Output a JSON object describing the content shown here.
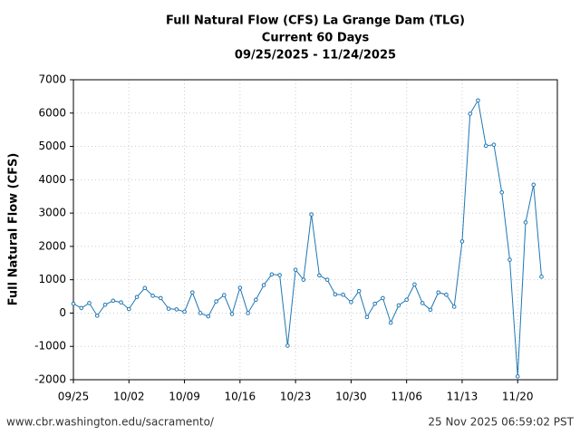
{
  "chart_data": {
    "type": "line",
    "title": [
      "Full Natural Flow (CFS) La Grange Dam (TLG)",
      "Current 60 Days",
      "09/25/2025 - 11/24/2025"
    ],
    "ylabel": "Full Natural Flow (CFS)",
    "x": [
      "2025-09-25",
      "2025-09-26",
      "2025-09-27",
      "2025-09-28",
      "2025-09-29",
      "2025-09-30",
      "2025-10-01",
      "2025-10-02",
      "2025-10-03",
      "2025-10-04",
      "2025-10-05",
      "2025-10-06",
      "2025-10-07",
      "2025-10-08",
      "2025-10-09",
      "2025-10-10",
      "2025-10-11",
      "2025-10-12",
      "2025-10-13",
      "2025-10-14",
      "2025-10-15",
      "2025-10-16",
      "2025-10-17",
      "2025-10-18",
      "2025-10-19",
      "2025-10-20",
      "2025-10-21",
      "2025-10-22",
      "2025-10-23",
      "2025-10-24",
      "2025-10-25",
      "2025-10-26",
      "2025-10-27",
      "2025-10-28",
      "2025-10-29",
      "2025-10-30",
      "2025-10-31",
      "2025-11-01",
      "2025-11-02",
      "2025-11-03",
      "2025-11-04",
      "2025-11-05",
      "2025-11-06",
      "2025-11-07",
      "2025-11-08",
      "2025-11-09",
      "2025-11-10",
      "2025-11-11",
      "2025-11-12",
      "2025-11-13",
      "2025-11-14",
      "2025-11-15",
      "2025-11-16",
      "2025-11-17",
      "2025-11-18",
      "2025-11-19",
      "2025-11-20",
      "2025-11-21",
      "2025-11-22",
      "2025-11-23"
    ],
    "values": [
      280,
      150,
      300,
      -80,
      250,
      370,
      320,
      120,
      480,
      750,
      520,
      450,
      130,
      110,
      40,
      620,
      0,
      -100,
      350,
      540,
      -30,
      760,
      0,
      400,
      840,
      1160,
      1140,
      -980,
      1300,
      1000,
      2960,
      1130,
      1000,
      560,
      550,
      330,
      660,
      -120,
      280,
      450,
      -290,
      230,
      400,
      860,
      300,
      100,
      620,
      550,
      190,
      2150,
      5980,
      6380,
      5020,
      5050,
      3620,
      1600,
      -1900,
      2720,
      3850,
      1090
    ],
    "color": "#1f77b4",
    "xlim": [
      "2025-09-25",
      "2025-11-25"
    ],
    "xticks": [
      {
        "value": "2025-09-25",
        "label": "09/25"
      },
      {
        "value": "2025-10-02",
        "label": "10/02"
      },
      {
        "value": "2025-10-09",
        "label": "10/09"
      },
      {
        "value": "2025-10-16",
        "label": "10/16"
      },
      {
        "value": "2025-10-23",
        "label": "10/23"
      },
      {
        "value": "2025-10-30",
        "label": "10/30"
      },
      {
        "value": "2025-11-06",
        "label": "11/06"
      },
      {
        "value": "2025-11-13",
        "label": "11/13"
      },
      {
        "value": "2025-11-20",
        "label": "11/20"
      }
    ],
    "ylim": [
      -2000,
      7000
    ],
    "yticks": [
      -2000,
      -1000,
      0,
      1000,
      2000,
      3000,
      4000,
      5000,
      6000,
      7000
    ],
    "grid": true
  },
  "footer": {
    "left": "www.cbr.washington.edu/sacramento/",
    "right": "25 Nov 2025 06:59:02 PST"
  }
}
